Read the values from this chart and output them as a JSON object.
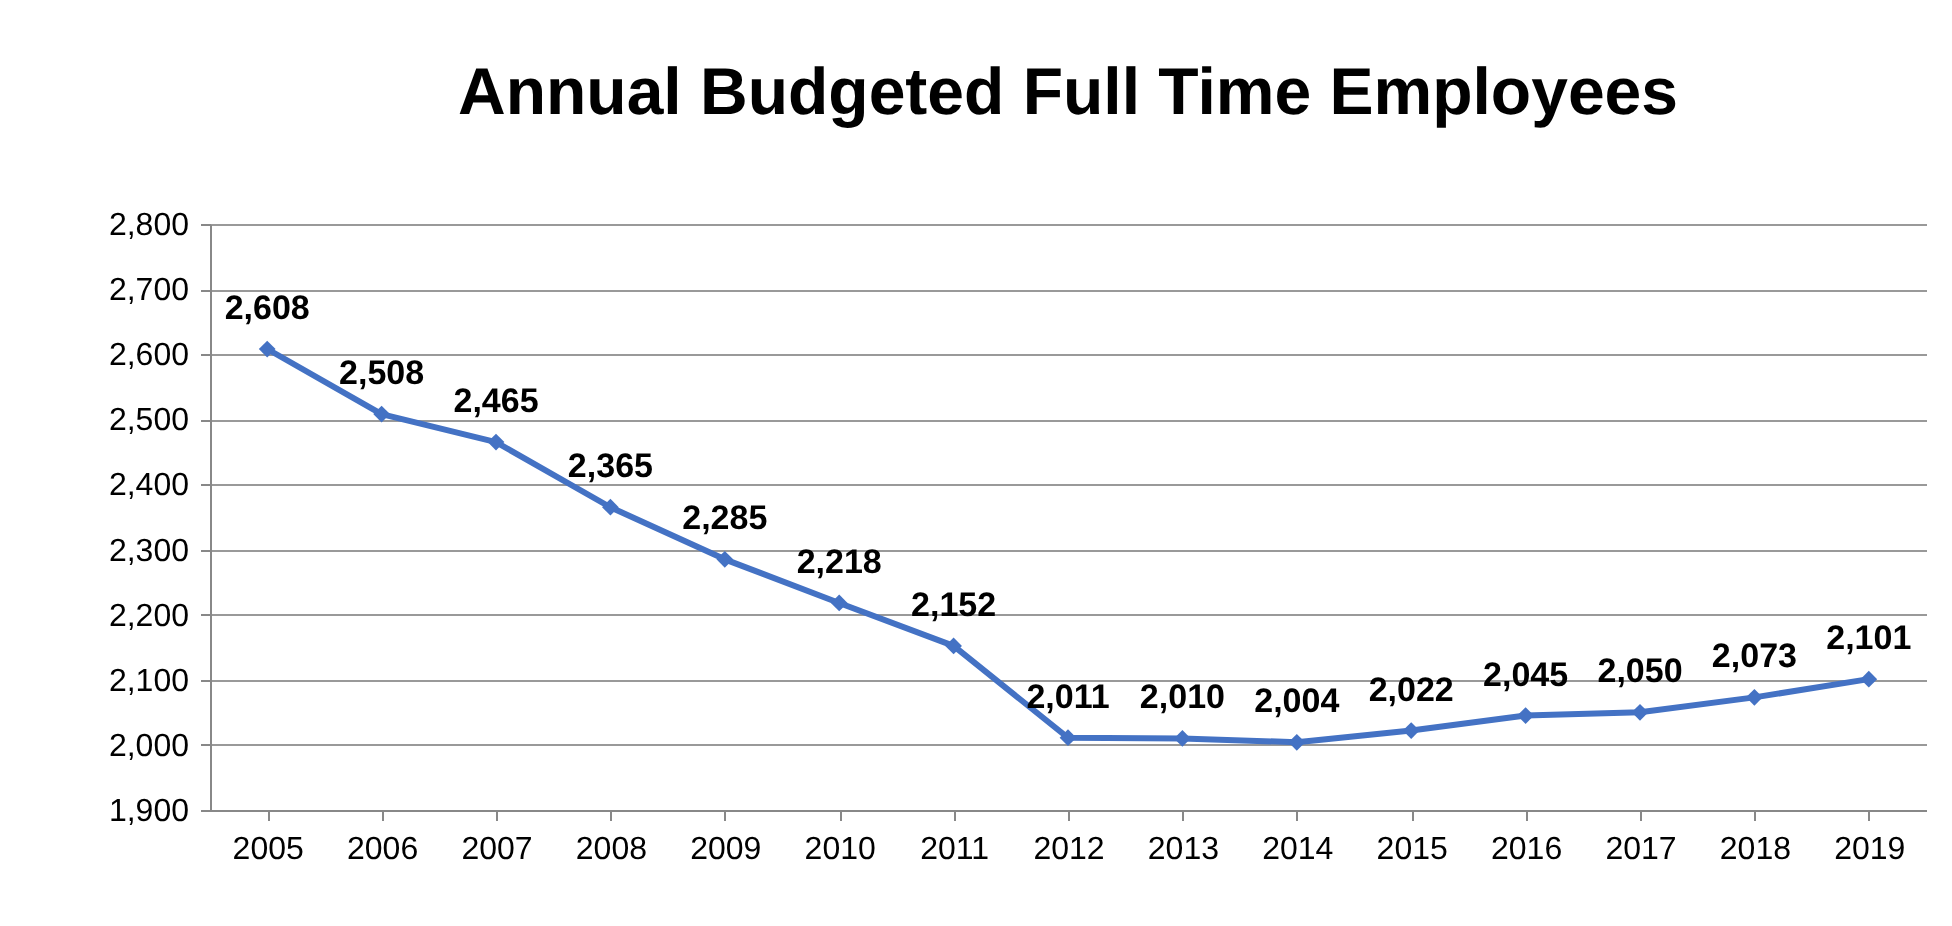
{
  "chart_data": {
    "type": "line",
    "title": "Annual Budgeted Full Time Employees",
    "categories": [
      "2005",
      "2006",
      "2007",
      "2008",
      "2009",
      "2010",
      "2011",
      "2012",
      "2013",
      "2014",
      "2015",
      "2016",
      "2017",
      "2018",
      "2019"
    ],
    "series": [
      {
        "color": "#4472c4",
        "values": [
          2608,
          2508,
          2465,
          2365,
          2285,
          2218,
          2152,
          2011,
          2010,
          2004,
          2022,
          2045,
          2050,
          2073,
          2101
        ],
        "value_labels": [
          "2,608",
          "2,508",
          "2,465",
          "2,365",
          "2,285",
          "2,218",
          "2,152",
          "2,011",
          "2,010",
          "2,004",
          "2,022",
          "2,045",
          "2,050",
          "2,073",
          "2,101"
        ]
      }
    ],
    "ylim": [
      1900,
      2800
    ],
    "yticks": [
      {
        "value": 1900,
        "label": "1,900"
      },
      {
        "value": 2000,
        "label": "2,000"
      },
      {
        "value": 2100,
        "label": "2,100"
      },
      {
        "value": 2200,
        "label": "2,200"
      },
      {
        "value": 2300,
        "label": "2,300"
      },
      {
        "value": 2400,
        "label": "2,400"
      },
      {
        "value": 2500,
        "label": "2,500"
      },
      {
        "value": 2600,
        "label": "2,600"
      },
      {
        "value": 2700,
        "label": "2,700"
      },
      {
        "value": 2800,
        "label": "2,800"
      }
    ],
    "grid": "y",
    "marker": "diamond",
    "line_style": "solid"
  }
}
